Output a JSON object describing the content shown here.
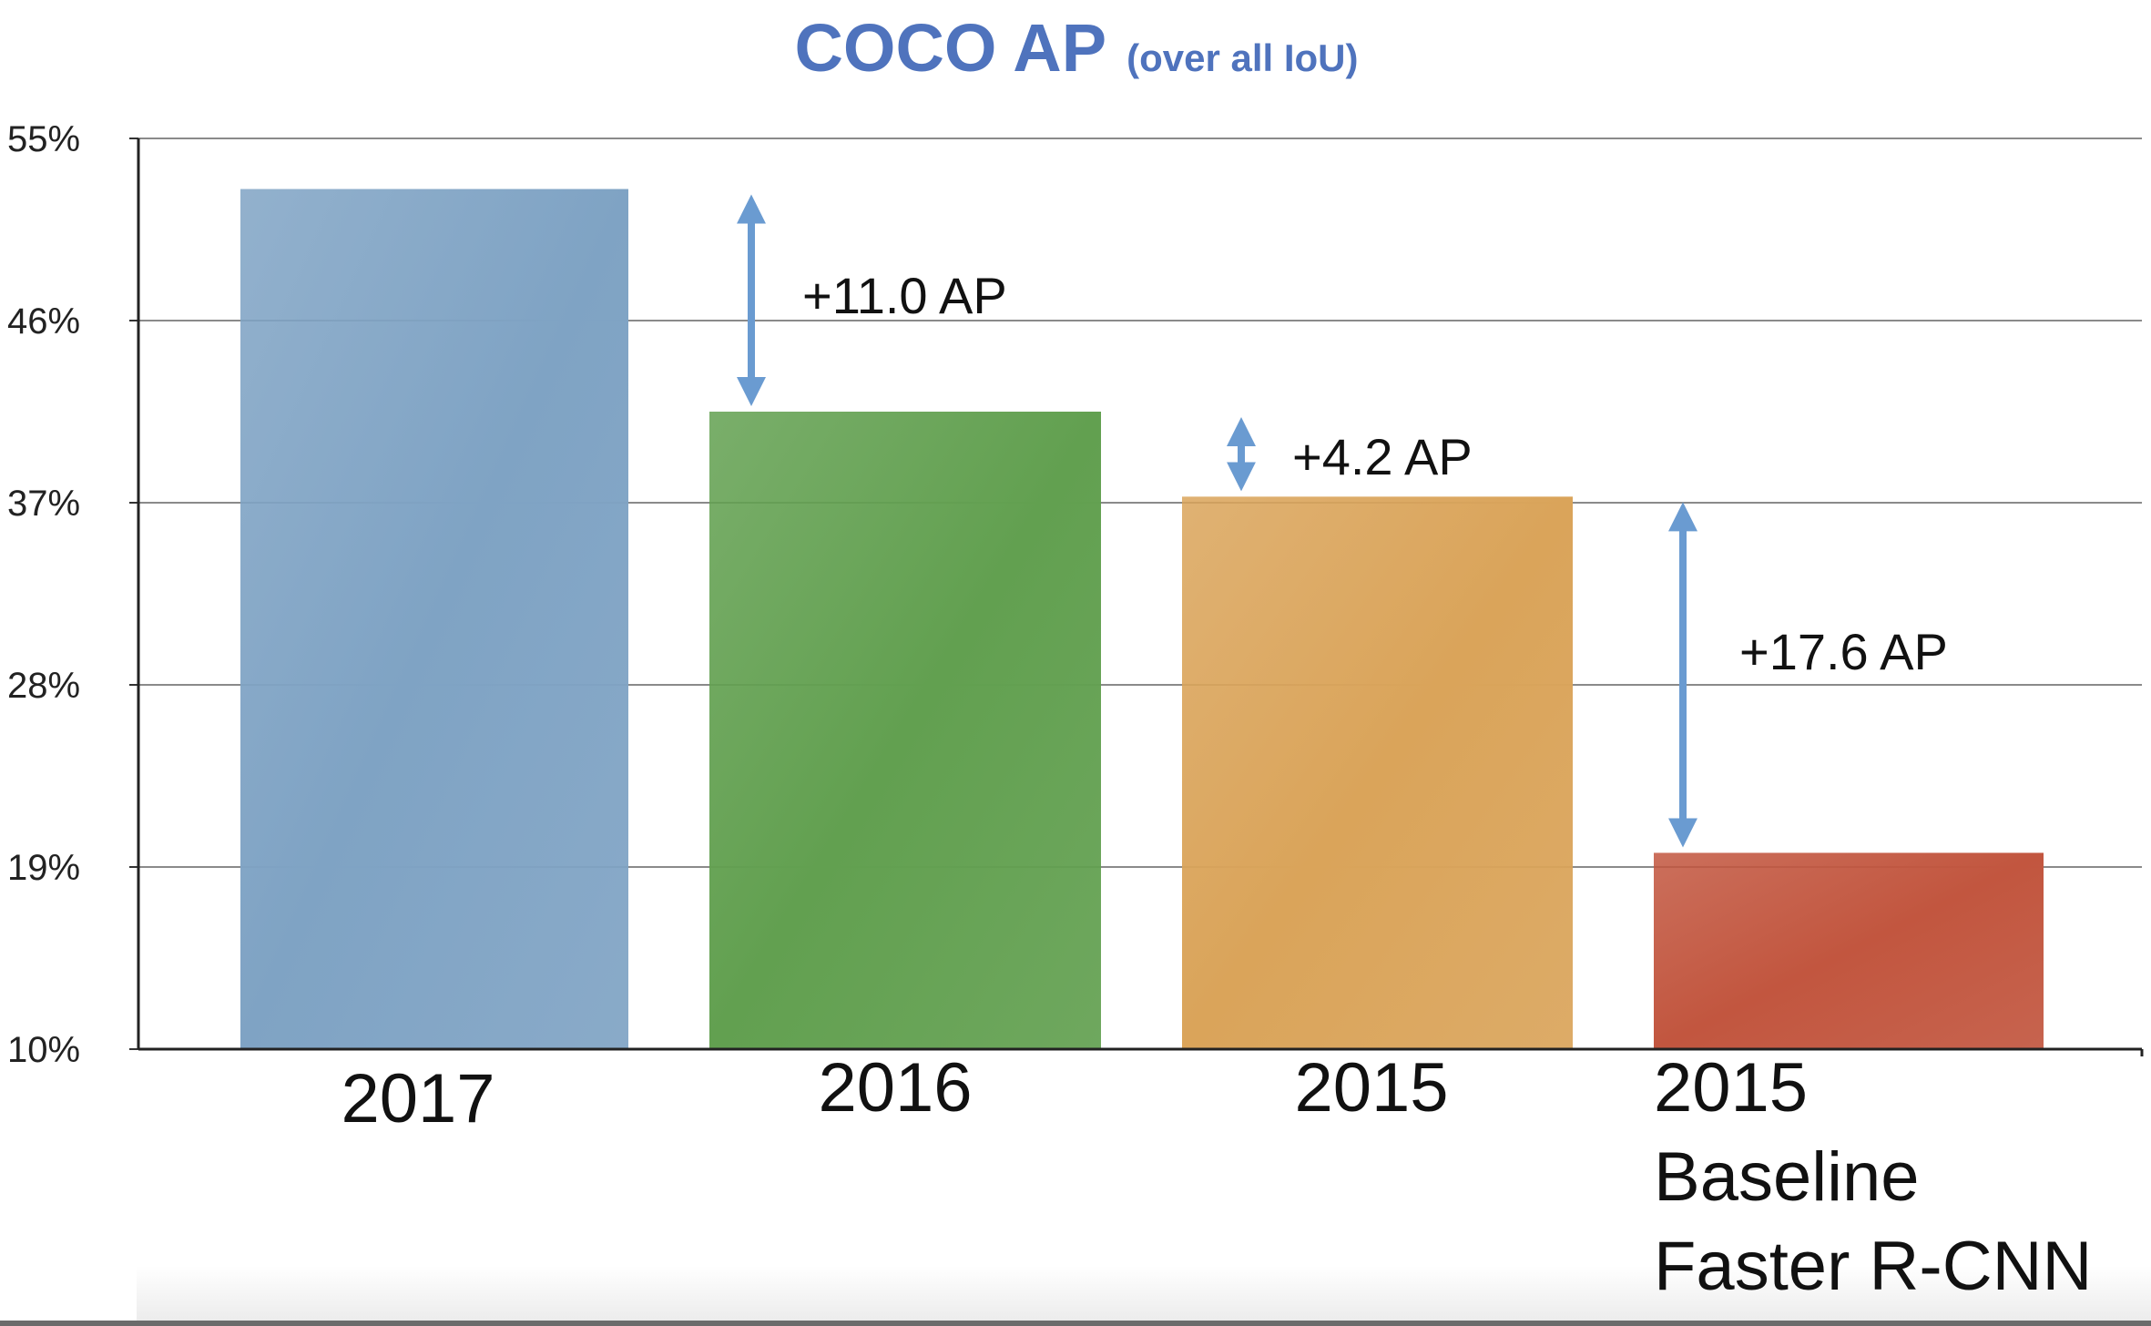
{
  "chart_data": {
    "type": "bar",
    "title": "COCO AP",
    "subtitle": "(over all IoU)",
    "categories": [
      "2017",
      "2016",
      "2015",
      "2015\nBaseline\nFaster R-CNN"
    ],
    "category_lines": [
      [
        "2017"
      ],
      [
        "2016"
      ],
      [
        "2015"
      ],
      [
        "2015",
        "Baseline",
        "Faster R-CNN"
      ]
    ],
    "values": [
      52.5,
      41.5,
      37.3,
      19.7
    ],
    "colors": [
      "#7fa3c4",
      "#62a050",
      "#daa45a",
      "#c2563f"
    ],
    "ylim": [
      10,
      55
    ],
    "yticks": [
      10,
      19,
      28,
      37,
      46,
      55
    ],
    "ytick_labels": [
      "10%",
      "19%",
      "28%",
      "37%",
      "46%",
      "55%"
    ],
    "grid": true,
    "xlabel": "",
    "ylabel": "",
    "annotations": [
      {
        "text": "+11.0 AP",
        "from": 41.5,
        "to": 52.5
      },
      {
        "text": "+4.2 AP",
        "from": 37.3,
        "to": 41.5
      },
      {
        "text": "+17.6 AP",
        "from": 19.7,
        "to": 37.3
      }
    ],
    "title_color": "#4f73bd",
    "arrow_color": "#6a9bd1"
  }
}
